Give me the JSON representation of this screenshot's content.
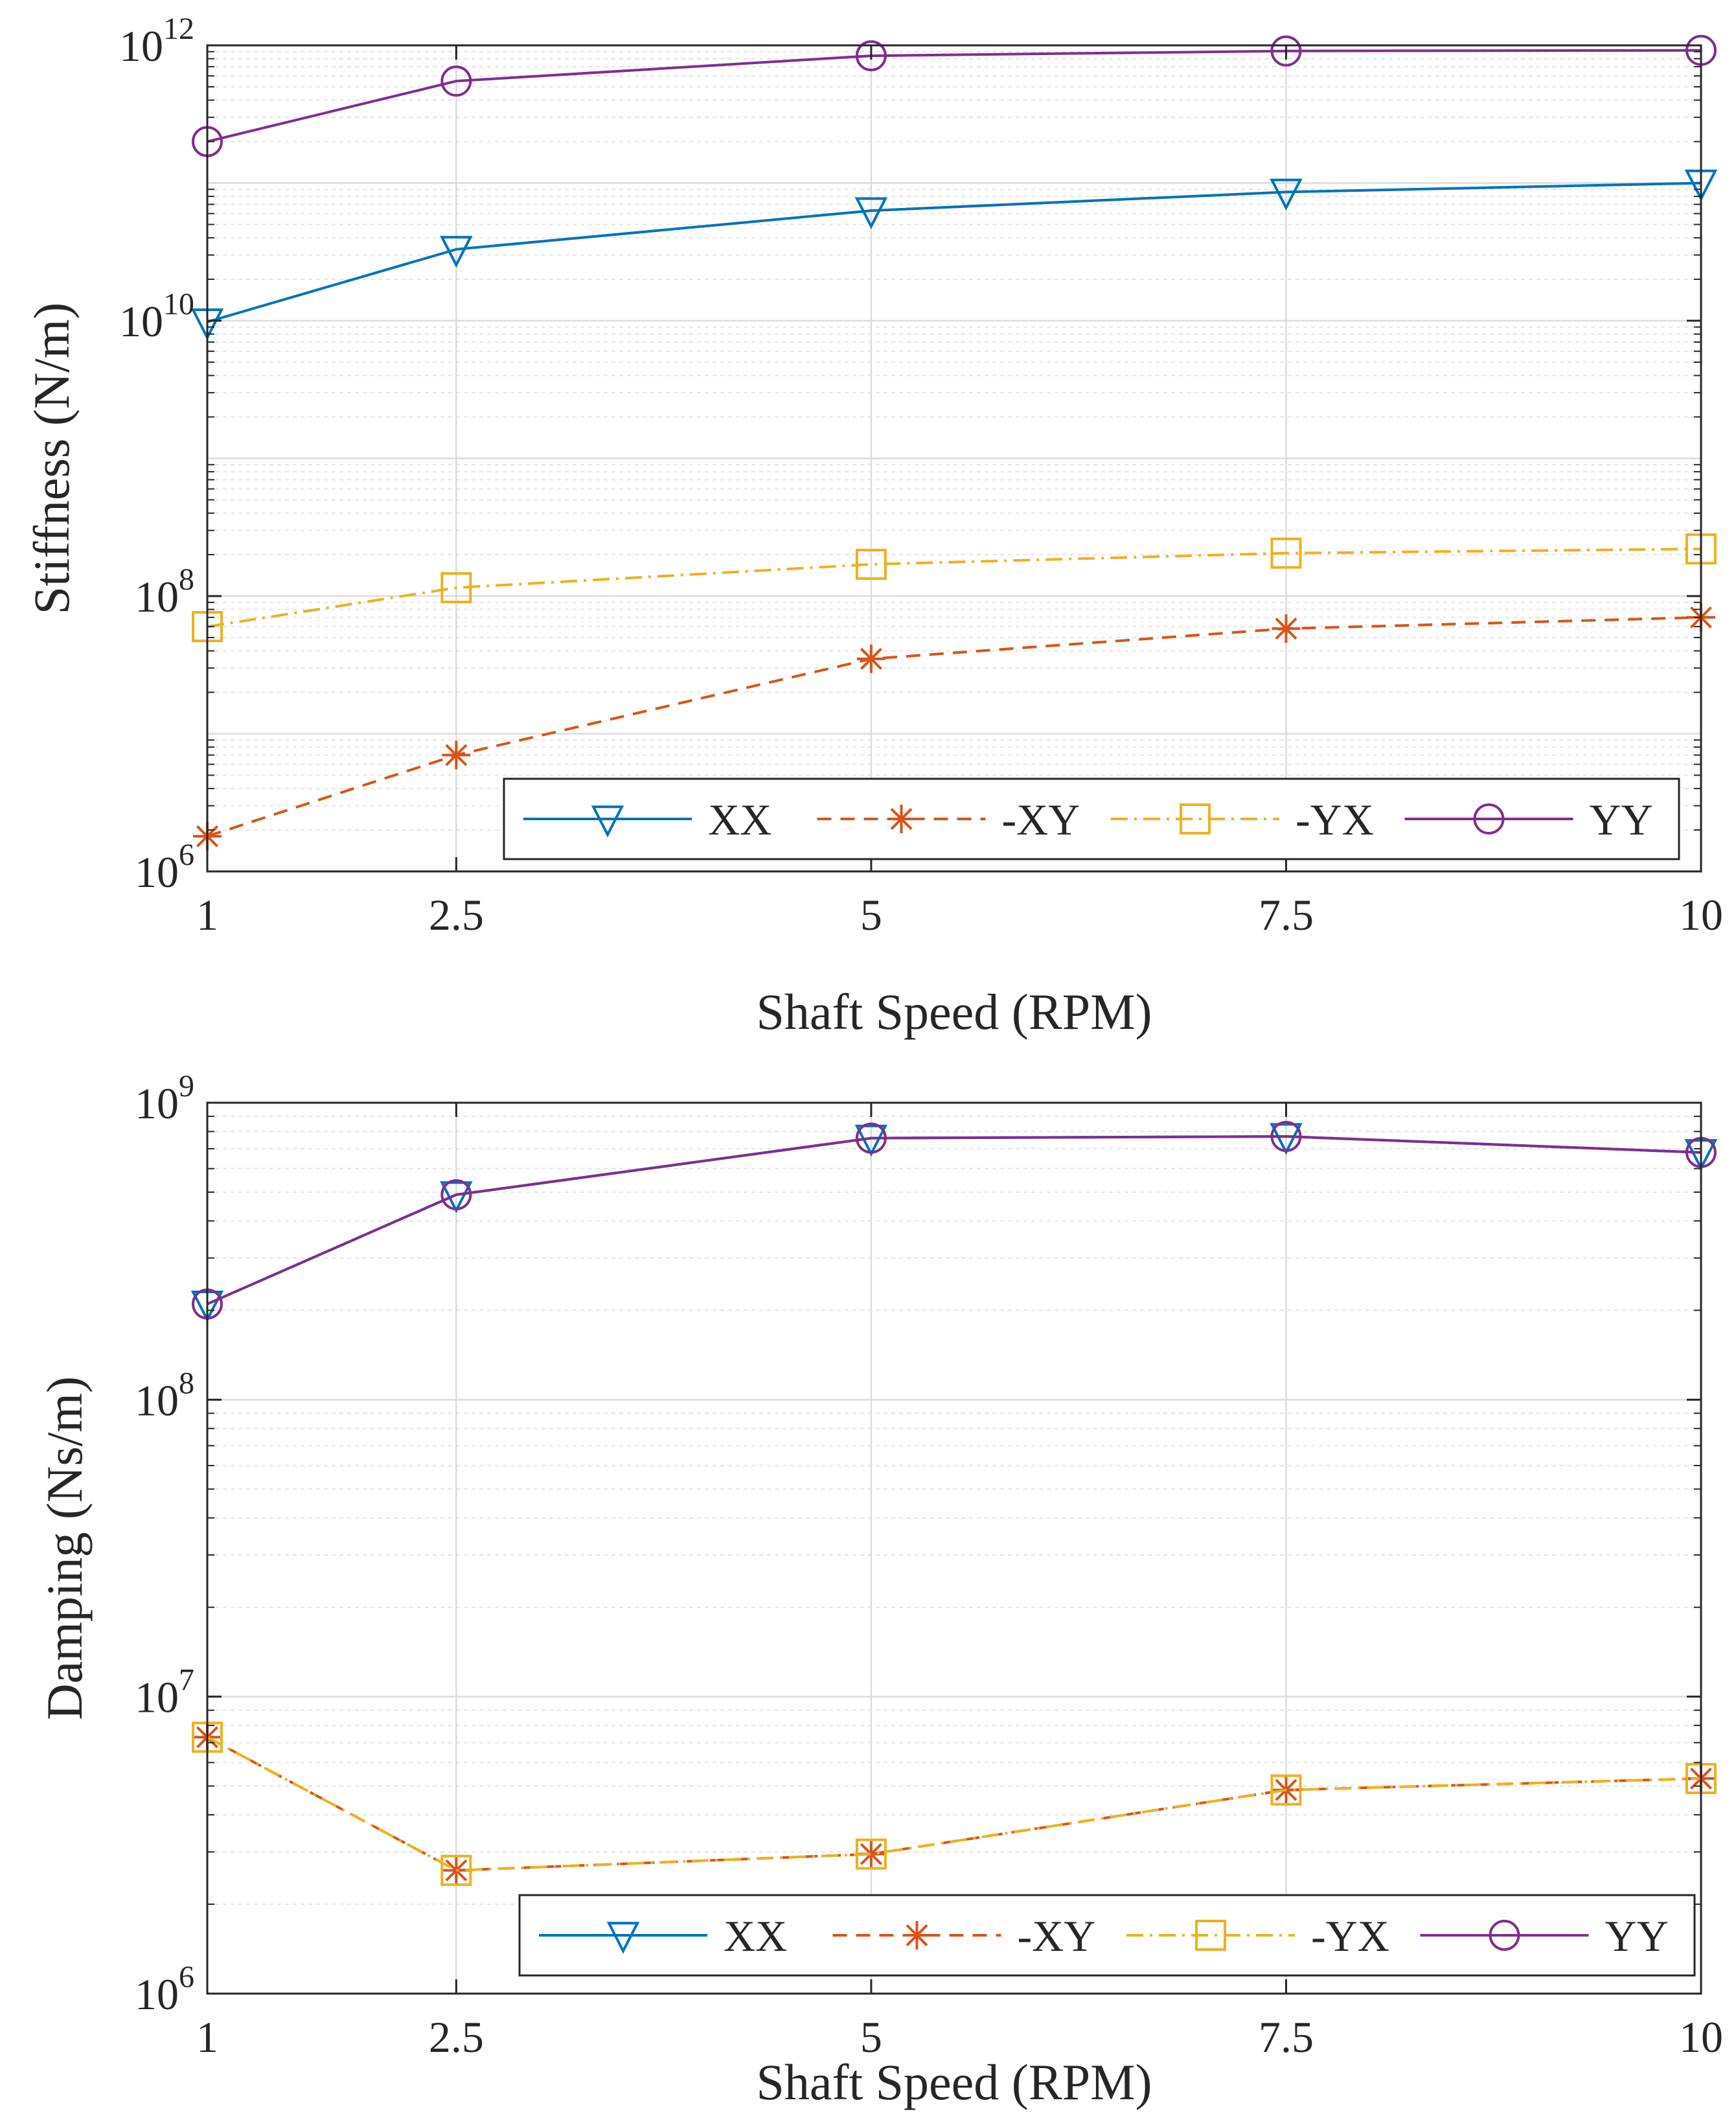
{
  "chart_data": [
    {
      "type": "line",
      "title": "",
      "xlabel": "Shaft Speed (RPM)",
      "ylabel": "Stiffness (N/m)",
      "yscale": "log",
      "ylim": [
        1000000,
        1000000000000
      ],
      "xlim": [
        1,
        10
      ],
      "grid": true,
      "x": [
        1,
        2.5,
        5,
        7.5,
        10
      ],
      "xtick_labels": [
        "1",
        "2.5",
        "5",
        "7.5",
        "10"
      ],
      "ytick_labels": [
        {
          "base": "10",
          "exp": "6"
        },
        {
          "base": "10",
          "exp": "8"
        },
        {
          "base": "10",
          "exp": "10"
        },
        {
          "base": "10",
          "exp": "12"
        }
      ],
      "legend_position": "bottom-right",
      "series": [
        {
          "name": "XX",
          "values": [
            9800000000,
            33000000000,
            63000000000,
            86000000000,
            100000000000
          ]
        },
        {
          "name": "-XY",
          "values": [
            1800000,
            7000000,
            35000000,
            58000000,
            70000000
          ]
        },
        {
          "name": "-YX",
          "values": [
            60000000,
            115000000,
            170000000,
            205000000,
            220000000
          ]
        },
        {
          "name": "YY",
          "values": [
            200000000000,
            550000000000,
            840000000000,
            910000000000,
            920000000000
          ]
        }
      ]
    },
    {
      "type": "line",
      "title": "",
      "xlabel": "Shaft Speed (RPM)",
      "ylabel": "Damping (Ns/m)",
      "yscale": "log",
      "ylim": [
        1000000,
        1000000000
      ],
      "xlim": [
        1,
        10
      ],
      "grid": true,
      "x": [
        1,
        2.5,
        5,
        7.5,
        10
      ],
      "xtick_labels": [
        "1",
        "2.5",
        "5",
        "7.5",
        "10"
      ],
      "ytick_labels": [
        {
          "base": "10",
          "exp": "6"
        },
        {
          "base": "10",
          "exp": "7"
        },
        {
          "base": "10",
          "exp": "8"
        },
        {
          "base": "10",
          "exp": "9"
        }
      ],
      "legend_position": "bottom",
      "series": [
        {
          "name": "XX",
          "values": [
            210000000,
            490000000,
            760000000,
            770000000,
            680000000
          ]
        },
        {
          "name": "-XY",
          "values": [
            7300000,
            2600000,
            2950000,
            4850000,
            5300000
          ]
        },
        {
          "name": "-YX",
          "values": [
            7300000,
            2600000,
            2950000,
            4850000,
            5300000
          ]
        },
        {
          "name": "YY",
          "values": [
            210000000,
            490000000,
            760000000,
            770000000,
            680000000
          ]
        }
      ]
    }
  ],
  "colors": {
    "XX": "#0072BD",
    "-XY": "#D95319",
    "-YX": "#EDB120",
    "YY": "#7E2F8E",
    "grid": "#dcdcdc",
    "axis": "#262626"
  },
  "markers": {
    "XX": "triangle-down",
    "-XY": "asterisk",
    "-YX": "square",
    "YY": "circle"
  }
}
